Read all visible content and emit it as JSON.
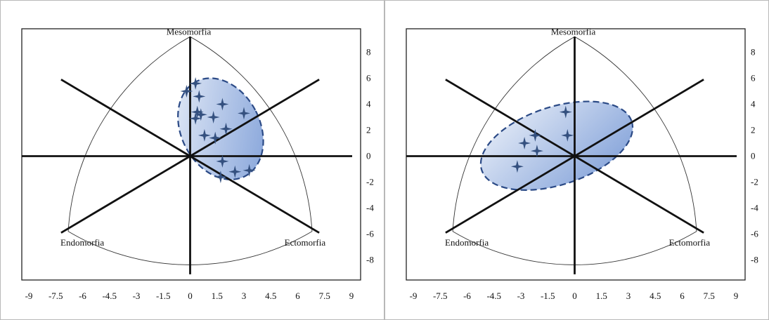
{
  "chart_data": [
    {
      "type": "scatter",
      "title": "",
      "xlabel": "",
      "ylabel": "",
      "xlim": [
        -9,
        9
      ],
      "ylim": [
        -10,
        10
      ],
      "x_ticks": [
        "-9",
        "-7.5",
        "-6",
        "-4.5",
        "-3",
        "-1.5",
        "0",
        "1.5",
        "3",
        "4.5",
        "6",
        "7.5",
        "9"
      ],
      "y_ticks": [
        "8",
        "6",
        "4",
        "2",
        "0",
        "-2",
        "-4",
        "-6",
        "-8"
      ],
      "vertex_labels": {
        "top": "Mesomorfia",
        "left": "Endomorfia",
        "right": "Ectomorfia"
      },
      "grid": false,
      "marker": "four-point-star",
      "region": {
        "shape": "dashed-ellipse",
        "center": [
          1.7,
          2.1
        ],
        "rx": 2.2,
        "ry": 4.1,
        "rotation_deg": -27
      },
      "series": [
        {
          "points": [
            [
              -0.2,
              5.0
            ],
            [
              0.3,
              5.6
            ],
            [
              0.5,
              4.6
            ],
            [
              1.8,
              4.0
            ],
            [
              0.4,
              3.4
            ],
            [
              0.6,
              3.2
            ],
            [
              3.0,
              3.3
            ],
            [
              1.3,
              3.0
            ],
            [
              0.3,
              2.9
            ],
            [
              2.0,
              2.1
            ],
            [
              1.4,
              1.4
            ],
            [
              0.8,
              1.6
            ],
            [
              1.8,
              -0.4
            ],
            [
              2.5,
              -1.2
            ],
            [
              3.3,
              -1.1
            ],
            [
              1.7,
              -1.6
            ]
          ]
        }
      ]
    },
    {
      "type": "scatter",
      "title": "",
      "xlabel": "",
      "ylabel": "",
      "xlim": [
        -9,
        9
      ],
      "ylim": [
        -10,
        10
      ],
      "x_ticks": [
        "-9",
        "-7.5",
        "-6",
        "-4.5",
        "-3",
        "-1.5",
        "0",
        "1.5",
        "3",
        "4.5",
        "6",
        "7.5",
        "9"
      ],
      "y_ticks": [
        "8",
        "6",
        "4",
        "2",
        "0",
        "-2",
        "-4",
        "-6",
        "-8"
      ],
      "vertex_labels": {
        "top": "Mesomorfia",
        "left": "Endomorfia",
        "right": "Ectomorfia"
      },
      "grid": false,
      "marker": "four-point-star",
      "region": {
        "shape": "dashed-ellipse",
        "center": [
          -1.0,
          0.8
        ],
        "rx": 4.4,
        "ry": 3.0,
        "rotation_deg": -18
      },
      "series": [
        {
          "points": [
            [
              -0.5,
              3.4
            ],
            [
              -0.4,
              1.6
            ],
            [
              -2.2,
              1.6
            ],
            [
              -2.1,
              0.4
            ],
            [
              -3.2,
              -0.8
            ],
            [
              -2.8,
              1.0
            ]
          ]
        }
      ]
    }
  ],
  "colors": {
    "fill_light": "#e8eef8",
    "fill_dark": "#7f9fd8",
    "outline": "#2b4a86",
    "marker": "#34507f"
  }
}
